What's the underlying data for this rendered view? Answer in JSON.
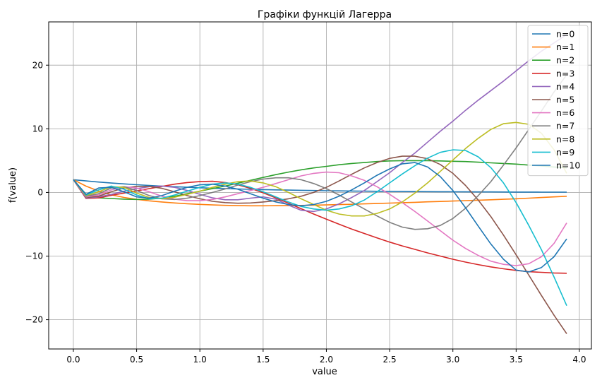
{
  "chart_data": {
    "type": "line",
    "title": "Графіки функцій Лагерра",
    "xlabel": "value",
    "ylabel": "f(value)",
    "xlim": [
      -0.195,
      4.095
    ],
    "ylim": [
      -24.6,
      26.8
    ],
    "xticks": [
      0.0,
      0.5,
      1.0,
      1.5,
      2.0,
      2.5,
      3.0,
      3.5,
      4.0
    ],
    "xtick_labels": [
      "0.0",
      "0.5",
      "1.0",
      "1.5",
      "2.0",
      "2.5",
      "3.0",
      "3.5",
      "4.0"
    ],
    "yticks": [
      -20,
      -10,
      0,
      10,
      20
    ],
    "ytick_labels": [
      "−20",
      "−10",
      "0",
      "10",
      "20"
    ],
    "grid": true,
    "legend_position": "top-right",
    "x": [
      0.0,
      0.1,
      0.2,
      0.3,
      0.4,
      0.5,
      0.6,
      0.7,
      0.8,
      0.9,
      1.0,
      1.1,
      1.2,
      1.3,
      1.4,
      1.5,
      1.6,
      1.7,
      1.8,
      1.9,
      2.0,
      2.1,
      2.2,
      2.3,
      2.4,
      2.5,
      2.6,
      2.7,
      2.8,
      2.9,
      3.0,
      3.1,
      3.2,
      3.3,
      3.4,
      3.5,
      3.6,
      3.7,
      3.8,
      3.9
    ],
    "series": [
      {
        "name": "n=0",
        "color": "#1f77b4",
        "values": [
          2.0,
          1.809675,
          1.637462,
          1.481636,
          1.34064,
          1.213061,
          1.097623,
          0.993171,
          0.898658,
          0.813139,
          0.735759,
          0.665742,
          0.602388,
          0.545064,
          0.493194,
          0.44626,
          0.403793,
          0.365367,
          0.330598,
          0.299137,
          0.270671,
          0.244911,
          0.221606,
          0.200514,
          0.181436,
          0.16417,
          0.148545,
          0.13441,
          0.121623,
          0.110046,
          0.099574,
          0.090097,
          0.081524,
          0.073764,
          0.066744,
          0.060394,
          0.054647,
          0.049442,
          0.044738,
          0.04048
        ]
      },
      {
        "name": "n=1",
        "color": "#ff7f0e",
        "values": [
          2.0,
          0.99,
          0.21,
          -0.37,
          -0.79,
          -1.09,
          -1.32,
          -1.5,
          -1.65,
          -1.77,
          -1.88,
          -1.96,
          -2.03,
          -2.08,
          -2.1,
          -2.1,
          -2.09,
          -2.07,
          -2.04,
          -2.0,
          -1.96,
          -1.91,
          -1.86,
          -1.8,
          -1.74,
          -1.68,
          -1.61,
          -1.55,
          -1.48,
          -1.42,
          -1.35,
          -1.29,
          -1.22,
          -1.15,
          -1.08,
          -1.0,
          -0.9,
          -0.8,
          -0.7,
          -0.6
        ]
      },
      {
        "name": "n=2",
        "color": "#2ca02c",
        "values": [
          2.0,
          -0.3,
          -0.85,
          -0.95,
          -1.05,
          -1.1,
          -1.05,
          -0.9,
          -0.6,
          -0.2,
          0.2,
          0.6,
          1.0,
          1.45,
          1.9,
          2.35,
          2.8,
          3.2,
          3.55,
          3.85,
          4.1,
          4.35,
          4.55,
          4.7,
          4.85,
          4.95,
          5.0,
          5.0,
          5.0,
          4.95,
          4.9,
          4.85,
          4.75,
          4.65,
          4.55,
          4.45,
          4.3,
          4.15,
          4.0,
          3.85
        ]
      },
      {
        "name": "n=3",
        "color": "#d62728",
        "values": [
          2.0,
          -0.95,
          -0.85,
          -0.45,
          -0.1,
          0.25,
          0.6,
          0.95,
          1.3,
          1.55,
          1.7,
          1.75,
          1.55,
          1.2,
          0.65,
          -0.05,
          -0.85,
          -1.7,
          -2.55,
          -3.4,
          -4.2,
          -5.0,
          -5.75,
          -6.45,
          -7.15,
          -7.8,
          -8.4,
          -8.95,
          -9.5,
          -10.0,
          -10.5,
          -10.95,
          -11.35,
          -11.7,
          -12.0,
          -12.25,
          -12.45,
          -12.55,
          -12.65,
          -12.7
        ]
      },
      {
        "name": "n=4",
        "color": "#9467bd",
        "values": [
          2.0,
          -0.9,
          -0.7,
          -0.3,
          0.2,
          0.6,
          0.9,
          1.0,
          0.8,
          0.3,
          -0.3,
          -0.85,
          -1.15,
          -1.15,
          -0.9,
          -0.7,
          -1.05,
          -2.0,
          -2.8,
          -3.0,
          -2.6,
          -1.8,
          -0.8,
          0.3,
          1.7,
          3.1,
          4.7,
          6.2,
          7.9,
          9.6,
          11.2,
          12.9,
          14.5,
          16.0,
          17.5,
          19.1,
          20.7,
          22.2,
          23.5,
          24.8
        ]
      },
      {
        "name": "n=5",
        "color": "#8c564b",
        "values": [
          2.0,
          -0.8,
          -0.6,
          0.1,
          0.7,
          0.95,
          0.95,
          0.65,
          0.1,
          -0.5,
          -1.0,
          -1.4,
          -1.6,
          -1.7,
          -1.65,
          -1.5,
          -1.3,
          -1.0,
          -0.6,
          0.0,
          0.8,
          1.8,
          2.85,
          3.85,
          4.7,
          5.35,
          5.7,
          5.7,
          5.3,
          4.4,
          3.0,
          1.1,
          -1.2,
          -3.8,
          -6.7,
          -9.8,
          -13.0,
          -16.2,
          -19.3,
          -22.2
        ]
      },
      {
        "name": "n=6",
        "color": "#e377c2",
        "values": [
          2.0,
          -0.7,
          -0.4,
          0.4,
          0.9,
          0.7,
          0.1,
          -0.6,
          -1.05,
          -1.3,
          -1.3,
          -1.1,
          -0.7,
          -0.2,
          0.3,
          0.8,
          1.4,
          2.0,
          2.6,
          3.0,
          3.2,
          3.1,
          2.6,
          1.9,
          0.9,
          -0.3,
          -1.6,
          -3.0,
          -4.5,
          -6.0,
          -7.5,
          -8.8,
          -9.9,
          -10.8,
          -11.3,
          -11.5,
          -11.2,
          -10.1,
          -8.0,
          -4.8
        ]
      },
      {
        "name": "n=7",
        "color": "#7f7f7f",
        "values": [
          2.0,
          -0.6,
          -0.2,
          0.7,
          0.9,
          0.3,
          -0.5,
          -1.0,
          -1.1,
          -0.9,
          -0.5,
          0.0,
          0.55,
          1.15,
          1.7,
          2.1,
          2.3,
          2.3,
          2.0,
          1.4,
          0.6,
          -0.4,
          -1.5,
          -2.6,
          -3.7,
          -4.7,
          -5.45,
          -5.8,
          -5.7,
          -5.2,
          -4.1,
          -2.5,
          -0.5,
          1.7,
          4.3,
          7.0,
          9.9,
          12.8,
          15.8,
          18.5
        ]
      },
      {
        "name": "n=8",
        "color": "#bcbd22",
        "values": [
          2.0,
          -0.5,
          0.1,
          0.9,
          0.8,
          -0.1,
          -0.8,
          -1.0,
          -0.75,
          -0.3,
          0.2,
          0.8,
          1.3,
          1.7,
          1.8,
          1.5,
          0.9,
          0.0,
          -1.0,
          -1.9,
          -2.8,
          -3.4,
          -3.7,
          -3.7,
          -3.3,
          -2.6,
          -1.5,
          -0.1,
          1.5,
          3.3,
          5.1,
          6.9,
          8.5,
          9.9,
          10.8,
          11.0,
          10.7,
          9.3,
          6.7,
          3.0
        ]
      },
      {
        "name": "n=9",
        "color": "#17becf",
        "values": [
          2.0,
          -0.4,
          0.4,
          1.0,
          0.5,
          -0.4,
          -1.0,
          -0.9,
          -0.4,
          0.2,
          0.8,
          1.3,
          1.5,
          1.3,
          0.8,
          0.1,
          -0.7,
          -1.5,
          -2.2,
          -2.6,
          -2.8,
          -2.6,
          -2.1,
          -1.2,
          0.1,
          1.5,
          2.9,
          4.2,
          5.4,
          6.3,
          6.7,
          6.6,
          5.6,
          3.9,
          1.5,
          -1.6,
          -5.2,
          -9.0,
          -13.3,
          -17.8
        ]
      },
      {
        "name": "n=10",
        "color": "#1f77b4",
        "values": [
          2.0,
          -0.3,
          0.7,
          0.8,
          0.1,
          -0.7,
          -0.9,
          -0.5,
          0.2,
          0.8,
          1.2,
          1.3,
          1.0,
          0.5,
          -0.2,
          -0.9,
          -1.5,
          -1.9,
          -2.1,
          -1.9,
          -1.4,
          -0.6,
          0.4,
          1.5,
          2.7,
          3.7,
          4.5,
          4.7,
          4.0,
          2.5,
          0.3,
          -2.4,
          -5.3,
          -8.1,
          -10.5,
          -12.2,
          -12.5,
          -11.8,
          -10.1,
          -7.3
        ]
      }
    ]
  }
}
